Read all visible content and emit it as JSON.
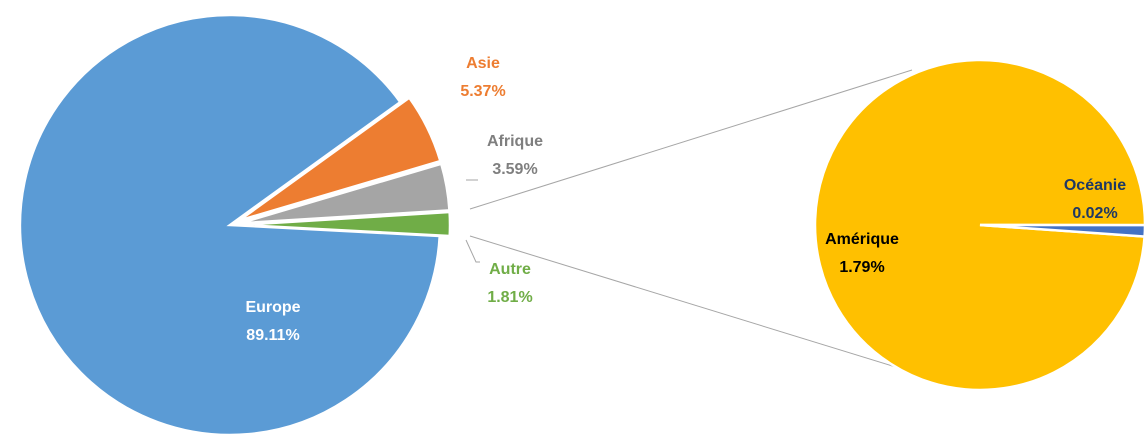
{
  "chart_data": [
    {
      "type": "pie",
      "categories": [
        "Europe",
        "Asie",
        "Afrique",
        "Autre"
      ],
      "values": [
        89.11,
        5.37,
        3.59,
        1.81
      ],
      "value_labels": [
        "89.11%",
        "5.37%",
        "3.59%",
        "1.81%"
      ],
      "colors": [
        "#5b9bd5",
        "#ed7d31",
        "#a5a5a5",
        "#70ad47"
      ],
      "label_colors": [
        "#ffffff",
        "#ed7d31",
        "#7f7f7f",
        "#70ad47"
      ]
    },
    {
      "type": "pie",
      "categories": [
        "Amérique",
        "Océanie"
      ],
      "values": [
        1.79,
        0.02
      ],
      "value_labels": [
        "1.79%",
        "0.02%"
      ],
      "colors": [
        "#ffc000",
        "#4472c4"
      ],
      "label_colors": [
        "#000000",
        "#1f3864"
      ]
    }
  ]
}
